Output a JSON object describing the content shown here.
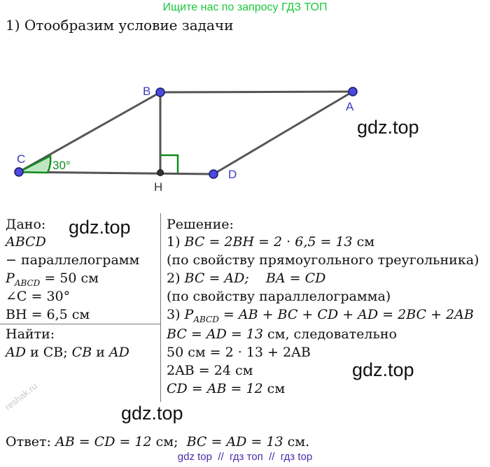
{
  "banner": "Ищите нас по запросу ГДЗ ТОП",
  "step_title": "1) Отообразим условие задачи",
  "figure": {
    "labels": {
      "A": "A",
      "B": "B",
      "C": "C",
      "D": "D",
      "H": "H"
    },
    "angle_label": "30°",
    "colors": {
      "line": "#555555",
      "point": "#4a4adf",
      "point_stroke": "#1a1a6a",
      "accent": "#118c1e"
    }
  },
  "watermarks": [
    "gdz.top",
    "gdz.top",
    "gdz.top",
    "gdz.top"
  ],
  "given": {
    "title": "Дано:",
    "abcd": "ABCD",
    "parallelogram": "− параллелограмм",
    "perimeter": {
      "p": "P",
      "sub": "ABCD",
      "rest": " = 50 см"
    },
    "angle_c": "∠C = 30°",
    "bh": "BH = 6,5 см",
    "find_title": "Найти:",
    "find_items": {
      "ad": "AD",
      "and1": " и CB; ",
      "cb": "CB",
      "and2": " и ",
      "ad2": "AD"
    }
  },
  "solution": {
    "title": "Решение:",
    "l1": {
      "num": "1) ",
      "expr": "BC = 2BH = 2 · 6,5 = 13 ",
      "unit": "см"
    },
    "l2": "(по свойству прямоугольного треугольника)",
    "l3": {
      "num": "2) ",
      "expr": "BC = AD;    BA = CD"
    },
    "l4": "(по свойству параллелограмма)",
    "l5": {
      "num": "3) ",
      "p": "P",
      "sub": "ABCD",
      "expr": " = AB + BC + CD + AD = 2BC + 2AB"
    },
    "l6": {
      "expr": "BC = AD = 13 ",
      "unit": "см, следовательно"
    },
    "l7": "50 см = 2 · 13 + 2AB",
    "l8": "2AB = 24 см",
    "l9": {
      "expr": "CD = AB = 12 ",
      "unit": "см"
    }
  },
  "answer": {
    "label": "Ответ: ",
    "expr1": "AB = CD = 12 ",
    "unit1": "см;  ",
    "expr2": "BC = AD = 13 ",
    "unit2": "см."
  },
  "footer": "gdz top  //  гдз топ  //  гдз top",
  "reshak": "reshak.ru"
}
